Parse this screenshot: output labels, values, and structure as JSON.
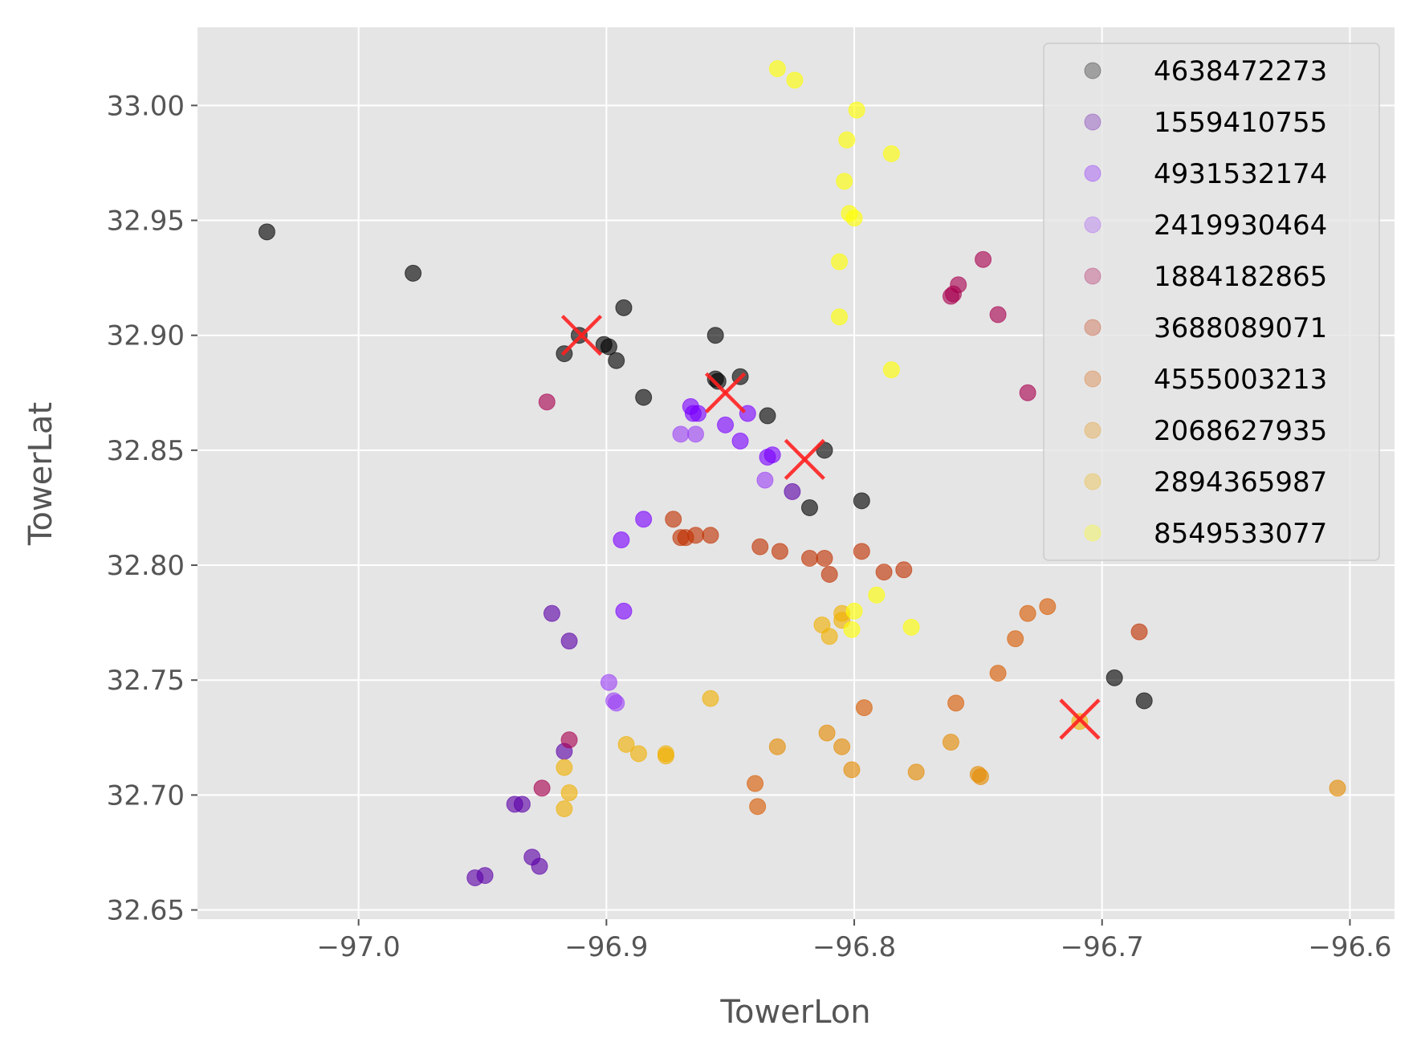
{
  "chart_data": {
    "type": "scatter",
    "title": "",
    "xlabel": "TowerLon",
    "ylabel": "TowerLat",
    "xlim": [
      -97.065,
      -96.582
    ],
    "ylim": [
      32.646,
      33.034
    ],
    "xticks": [
      -97.0,
      -96.9,
      -96.8,
      -96.7,
      -96.6
    ],
    "xtick_labels": [
      "−97.0",
      "−96.9",
      "−96.8",
      "−96.7",
      "−96.6"
    ],
    "yticks": [
      32.65,
      32.7,
      32.75,
      32.8,
      32.85,
      32.9,
      32.95,
      33.0
    ],
    "ytick_labels": [
      "32.65",
      "32.70",
      "32.75",
      "32.80",
      "32.85",
      "32.90",
      "32.95",
      "33.00"
    ],
    "grid": true,
    "background": "#e5e5e5",
    "legend_position": "upper right",
    "series": [
      {
        "name": "4638472273",
        "color": "#000000",
        "points": [
          [
            -97.037,
            32.945
          ],
          [
            -96.978,
            32.927
          ],
          [
            -96.917,
            32.892
          ],
          [
            -96.911,
            32.9
          ],
          [
            -96.901,
            32.896
          ],
          [
            -96.899,
            32.895
          ],
          [
            -96.896,
            32.889
          ],
          [
            -96.893,
            32.912
          ],
          [
            -96.885,
            32.873
          ],
          [
            -96.856,
            32.9
          ],
          [
            -96.855,
            32.88
          ],
          [
            -96.856,
            32.881
          ],
          [
            -96.846,
            32.882
          ],
          [
            -96.835,
            32.865
          ],
          [
            -96.818,
            32.825
          ],
          [
            -96.812,
            32.85
          ],
          [
            -96.797,
            32.828
          ],
          [
            -96.695,
            32.751
          ],
          [
            -96.683,
            32.741
          ]
        ]
      },
      {
        "name": "1559410755",
        "color": "#5c00a8",
        "points": [
          [
            -96.953,
            32.664
          ],
          [
            -96.949,
            32.665
          ],
          [
            -96.937,
            32.696
          ],
          [
            -96.934,
            32.696
          ],
          [
            -96.93,
            32.673
          ],
          [
            -96.927,
            32.669
          ],
          [
            -96.922,
            32.779
          ],
          [
            -96.917,
            32.719
          ],
          [
            -96.915,
            32.767
          ],
          [
            -96.825,
            32.832
          ]
        ]
      },
      {
        "name": "4931532174",
        "color": "#7a00ff",
        "points": [
          [
            -96.894,
            32.811
          ],
          [
            -96.893,
            32.78
          ],
          [
            -96.885,
            32.82
          ],
          [
            -96.866,
            32.869
          ],
          [
            -96.865,
            32.866
          ],
          [
            -96.863,
            32.866
          ],
          [
            -96.843,
            32.866
          ],
          [
            -96.852,
            32.861
          ],
          [
            -96.846,
            32.854
          ],
          [
            -96.835,
            32.847
          ],
          [
            -96.833,
            32.848
          ]
        ]
      },
      {
        "name": "2419930464",
        "color": "#9c42f5",
        "points": [
          [
            -96.899,
            32.749
          ],
          [
            -96.897,
            32.741
          ],
          [
            -96.896,
            32.74
          ],
          [
            -96.87,
            32.857
          ],
          [
            -96.864,
            32.857
          ],
          [
            -96.836,
            32.837
          ]
        ]
      },
      {
        "name": "1884182865",
        "color": "#a8004f",
        "points": [
          [
            -96.924,
            32.871
          ],
          [
            -96.926,
            32.703
          ],
          [
            -96.915,
            32.724
          ],
          [
            -96.761,
            32.917
          ],
          [
            -96.76,
            32.918
          ],
          [
            -96.758,
            32.922
          ],
          [
            -96.748,
            32.933
          ],
          [
            -96.742,
            32.909
          ],
          [
            -96.73,
            32.875
          ]
        ]
      },
      {
        "name": "3688089071",
        "color": "#c03000",
        "points": [
          [
            -96.873,
            32.82
          ],
          [
            -96.87,
            32.812
          ],
          [
            -96.868,
            32.812
          ],
          [
            -96.864,
            32.813
          ],
          [
            -96.858,
            32.813
          ],
          [
            -96.838,
            32.808
          ],
          [
            -96.83,
            32.806
          ],
          [
            -96.818,
            32.803
          ],
          [
            -96.812,
            32.803
          ],
          [
            -96.81,
            32.796
          ],
          [
            -96.797,
            32.806
          ],
          [
            -96.788,
            32.797
          ],
          [
            -96.78,
            32.798
          ],
          [
            -96.685,
            32.771
          ]
        ]
      },
      {
        "name": "4555003213",
        "color": "#d85b00",
        "points": [
          [
            -96.84,
            32.705
          ],
          [
            -96.839,
            32.695
          ],
          [
            -96.796,
            32.738
          ],
          [
            -96.759,
            32.74
          ],
          [
            -96.742,
            32.753
          ],
          [
            -96.735,
            32.768
          ],
          [
            -96.73,
            32.779
          ],
          [
            -96.722,
            32.782
          ]
        ]
      },
      {
        "name": "2068627935",
        "color": "#e58a00",
        "points": [
          [
            -96.831,
            32.721
          ],
          [
            -96.811,
            32.727
          ],
          [
            -96.805,
            32.721
          ],
          [
            -96.801,
            32.711
          ],
          [
            -96.775,
            32.71
          ],
          [
            -96.761,
            32.723
          ],
          [
            -96.75,
            32.709
          ],
          [
            -96.749,
            32.708
          ],
          [
            -96.605,
            32.703
          ]
        ]
      },
      {
        "name": "2894365987",
        "color": "#f0b000",
        "points": [
          [
            -96.917,
            32.712
          ],
          [
            -96.917,
            32.694
          ],
          [
            -96.915,
            32.701
          ],
          [
            -96.892,
            32.722
          ],
          [
            -96.887,
            32.718
          ],
          [
            -96.876,
            32.717
          ],
          [
            -96.876,
            32.718
          ],
          [
            -96.858,
            32.742
          ],
          [
            -96.813,
            32.774
          ],
          [
            -96.81,
            32.769
          ],
          [
            -96.805,
            32.779
          ],
          [
            -96.805,
            32.776
          ],
          [
            -96.709,
            32.732
          ]
        ]
      },
      {
        "name": "8549533077",
        "color": "#ffff00",
        "points": [
          [
            -96.831,
            33.016
          ],
          [
            -96.824,
            33.011
          ],
          [
            -96.799,
            32.998
          ],
          [
            -96.803,
            32.985
          ],
          [
            -96.785,
            32.979
          ],
          [
            -96.804,
            32.967
          ],
          [
            -96.802,
            32.953
          ],
          [
            -96.8,
            32.951
          ],
          [
            -96.806,
            32.932
          ],
          [
            -96.806,
            32.908
          ],
          [
            -96.785,
            32.885
          ],
          [
            -96.791,
            32.787
          ],
          [
            -96.8,
            32.78
          ],
          [
            -96.801,
            32.772
          ],
          [
            -96.777,
            32.773
          ]
        ]
      }
    ],
    "centroids": {
      "color": "#ff2020",
      "points": [
        [
          -96.91,
          32.9
        ],
        [
          -96.852,
          32.875
        ],
        [
          -96.82,
          32.846
        ],
        [
          -96.709,
          32.733
        ]
      ]
    }
  }
}
